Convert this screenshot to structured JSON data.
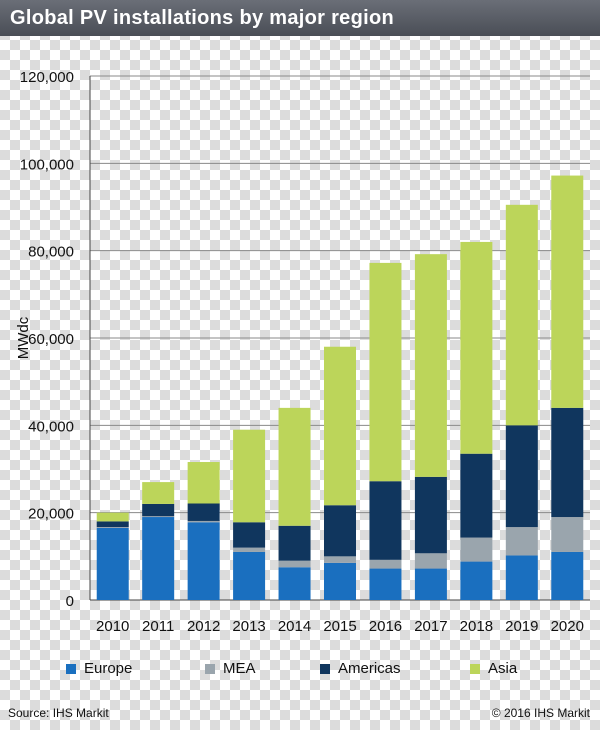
{
  "header": {
    "title": "Global PV installations by major region"
  },
  "chart_data": {
    "type": "bar",
    "stacked": true,
    "categories": [
      "2010",
      "2011",
      "2012",
      "2013",
      "2014",
      "2015",
      "2016",
      "2017",
      "2018",
      "2019",
      "2020"
    ],
    "series": [
      {
        "name": "Europe",
        "color": "#1a6fbf",
        "values": [
          16500,
          19000,
          17800,
          11000,
          7500,
          8500,
          7200,
          7200,
          8800,
          10200,
          11000
        ]
      },
      {
        "name": "MEA",
        "color": "#9aa5ad",
        "values": [
          200,
          200,
          300,
          1000,
          1500,
          1500,
          2000,
          3500,
          5500,
          6500,
          8000
        ]
      },
      {
        "name": "Americas",
        "color": "#10365e",
        "values": [
          1300,
          2800,
          4000,
          5800,
          8000,
          11700,
          18000,
          17500,
          19200,
          23300,
          25000
        ]
      },
      {
        "name": "Asia",
        "color": "#bcd55a",
        "values": [
          2000,
          5000,
          9500,
          21200,
          27000,
          36300,
          50000,
          51000,
          48500,
          50500,
          53200
        ]
      }
    ],
    "ylabel": "MWdc",
    "xlabel": "",
    "ylim": [
      0,
      120000
    ],
    "yticks": [
      0,
      20000,
      40000,
      60000,
      80000,
      100000,
      120000
    ],
    "ytick_labels": [
      "0",
      "20,000",
      "40,000",
      "60,000",
      "80,000",
      "100,000",
      "120,000"
    ],
    "grid": true,
    "legend_position": "bottom"
  },
  "footer": {
    "source": "Source: IHS Markit",
    "copyright": "© 2016 IHS Markit"
  }
}
